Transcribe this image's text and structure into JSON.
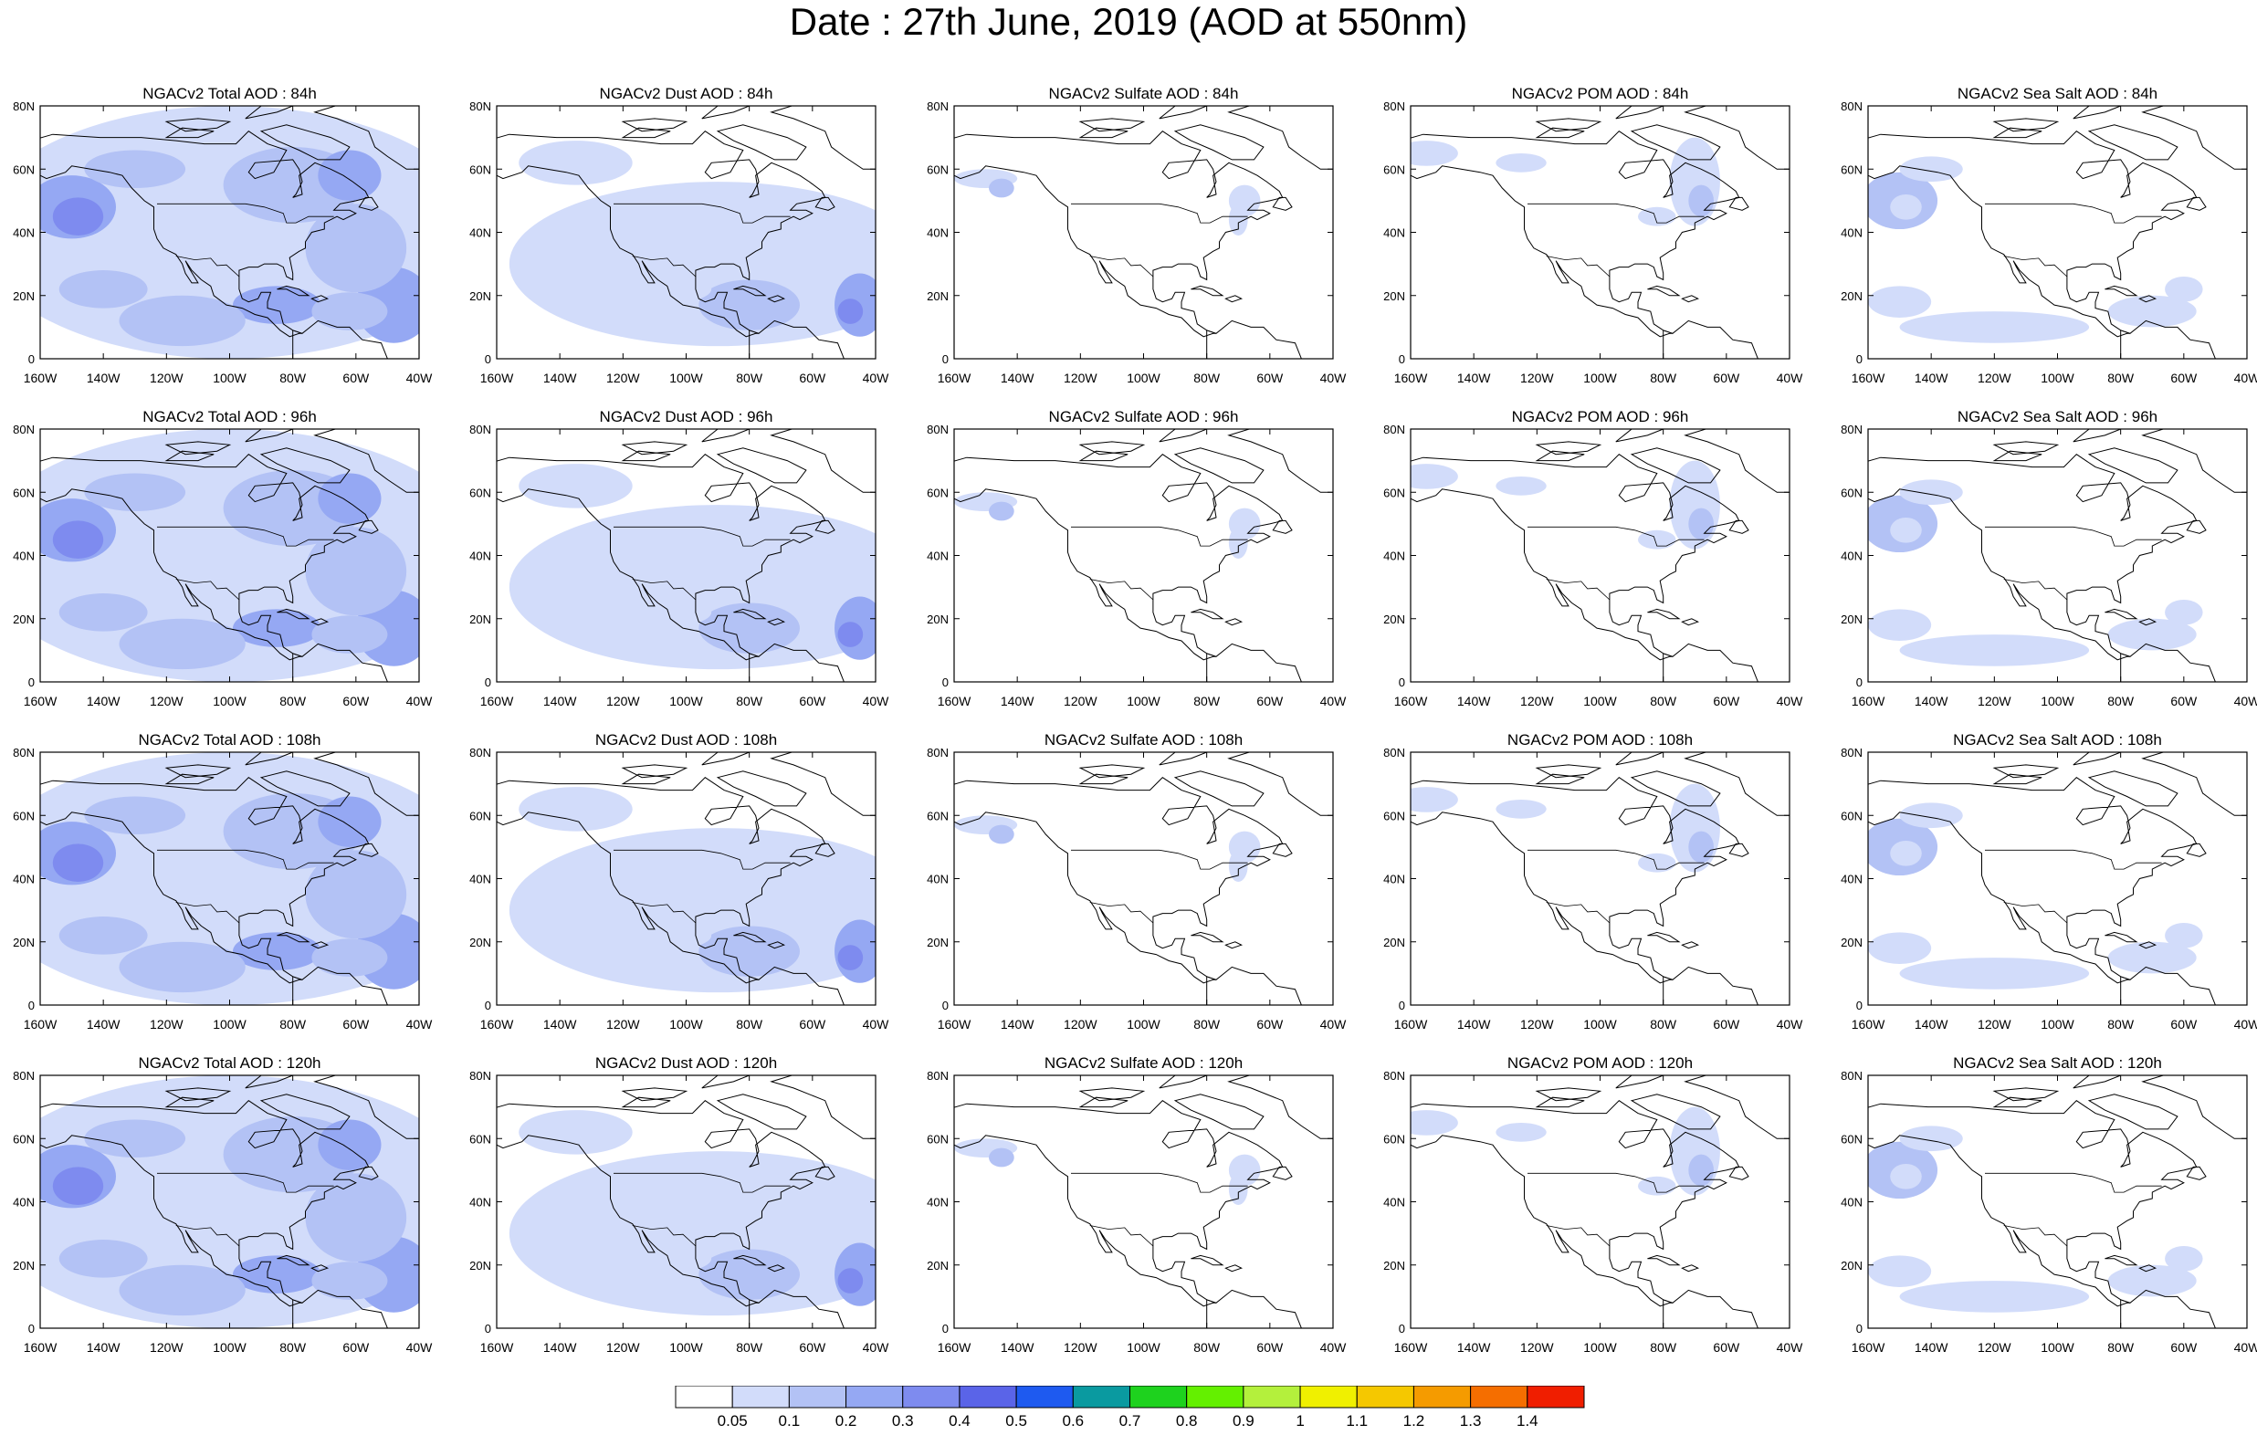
{
  "title": "Date : 27th June, 2019 (AOD at 550nm)",
  "panels": [
    {
      "title": "NGACv2 Total AOD : 84h",
      "species": "total"
    },
    {
      "title": "NGACv2 Dust AOD : 84h",
      "species": "dust"
    },
    {
      "title": "NGACv2 Sulfate AOD : 84h",
      "species": "sulfate"
    },
    {
      "title": "NGACv2 POM AOD : 84h",
      "species": "pom"
    },
    {
      "title": "NGACv2 Sea Salt AOD : 84h",
      "species": "seasalt"
    },
    {
      "title": "NGACv2 Total AOD : 96h",
      "species": "total"
    },
    {
      "title": "NGACv2 Dust AOD : 96h",
      "species": "dust"
    },
    {
      "title": "NGACv2 Sulfate AOD : 96h",
      "species": "sulfate"
    },
    {
      "title": "NGACv2 POM AOD : 96h",
      "species": "pom"
    },
    {
      "title": "NGACv2 Sea Salt AOD : 96h",
      "species": "seasalt"
    },
    {
      "title": "NGACv2 Total AOD : 108h",
      "species": "total"
    },
    {
      "title": "NGACv2 Dust AOD : 108h",
      "species": "dust"
    },
    {
      "title": "NGACv2 Sulfate AOD : 108h",
      "species": "sulfate"
    },
    {
      "title": "NGACv2 POM AOD : 108h",
      "species": "pom"
    },
    {
      "title": "NGACv2 Sea Salt AOD : 108h",
      "species": "seasalt"
    },
    {
      "title": "NGACv2 Total AOD : 120h",
      "species": "total"
    },
    {
      "title": "NGACv2 Dust AOD : 120h",
      "species": "dust"
    },
    {
      "title": "NGACv2 Sulfate AOD : 120h",
      "species": "sulfate"
    },
    {
      "title": "NGACv2 POM AOD : 120h",
      "species": "pom"
    },
    {
      "title": "NGACv2 Sea Salt AOD : 120h",
      "species": "seasalt"
    }
  ],
  "lat_ticks": [
    "0",
    "20N",
    "40N",
    "60N",
    "80N"
  ],
  "lon_ticks": [
    "160W",
    "140W",
    "120W",
    "100W",
    "80W",
    "60W",
    "40W"
  ],
  "colorbar": {
    "labels": [
      "0.05",
      "0.1",
      "0.2",
      "0.3",
      "0.4",
      "0.5",
      "0.6",
      "0.7",
      "0.8",
      "0.9",
      "1",
      "1.1",
      "1.2",
      "1.3",
      "1.4"
    ],
    "colors": [
      "#ffffff",
      "#d2dcfa",
      "#b3c2f5",
      "#95a8f3",
      "#7e8bef",
      "#5a64e8",
      "#1e5af0",
      "#0a9aa0",
      "#1ed21e",
      "#64f000",
      "#b4f03c",
      "#f0f000",
      "#f5c800",
      "#f59b00",
      "#f56e00",
      "#f01e00"
    ]
  }
}
